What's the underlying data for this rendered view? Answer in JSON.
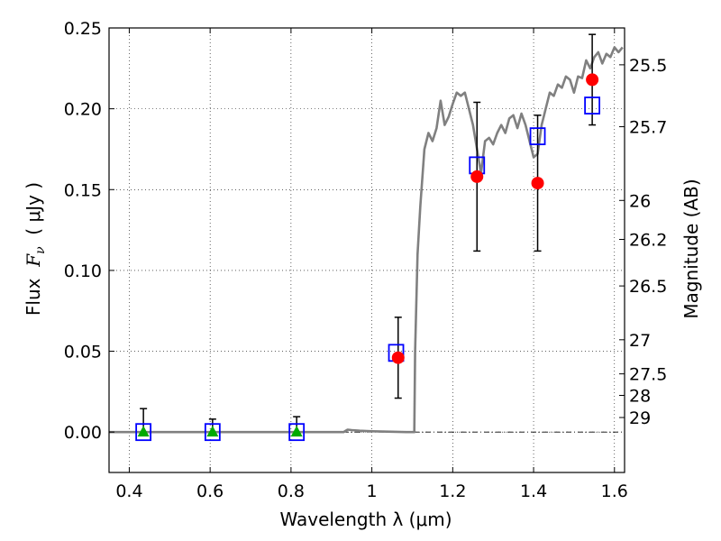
{
  "chart_data": {
    "type": "scatter",
    "xlabel": "Wavelength  λ (μm)",
    "ylabel": "Flux  Fν  ( μJy )",
    "ylabel_parts": {
      "prefix": "Flux  ",
      "symbol": "F",
      "subscript": "ν",
      "suffix": "  ( μJy )"
    },
    "ylabel_right": "Magnitude (AB)",
    "xlim": [
      0.35,
      1.625
    ],
    "ylim": [
      -0.025,
      0.25
    ],
    "grid": true,
    "x_ticks": [
      0.4,
      0.6,
      0.8,
      1.0,
      1.2,
      1.4,
      1.6
    ],
    "x_tick_labels": [
      "0.4",
      "0.6",
      "0.8",
      "1",
      "1.2",
      "1.4",
      "1.6"
    ],
    "y_ticks": [
      0.0,
      0.05,
      0.1,
      0.15,
      0.2,
      0.25
    ],
    "y_tick_labels": [
      "0.00",
      "0.05",
      "0.10",
      "0.15",
      "0.20",
      "0.25"
    ],
    "right_ticks": [
      {
        "label": "25.5",
        "flux": 0.2272
      },
      {
        "label": "25.7",
        "flux": 0.1889
      },
      {
        "label": "26",
        "flux": 0.1433
      },
      {
        "label": "26.2",
        "flux": 0.1192
      },
      {
        "label": "26.5",
        "flux": 0.0904
      },
      {
        "label": "27",
        "flux": 0.0571
      },
      {
        "label": "27.5",
        "flux": 0.036
      },
      {
        "label": "28",
        "flux": 0.0227
      },
      {
        "label": "29",
        "flux": 0.009
      }
    ],
    "series": [
      {
        "kind": "model-sed",
        "color": "#808080",
        "x": [
          0.35,
          0.5,
          0.7,
          0.93,
          0.94,
          0.95,
          0.97,
          1.0,
          1.05,
          1.085,
          1.105,
          1.107,
          1.113,
          1.12,
          1.13,
          1.14,
          1.15,
          1.16,
          1.17,
          1.18,
          1.19,
          1.2,
          1.21,
          1.22,
          1.23,
          1.24,
          1.25,
          1.26,
          1.27,
          1.28,
          1.29,
          1.3,
          1.31,
          1.32,
          1.33,
          1.34,
          1.35,
          1.36,
          1.37,
          1.38,
          1.39,
          1.4,
          1.41,
          1.42,
          1.43,
          1.44,
          1.45,
          1.46,
          1.47,
          1.48,
          1.49,
          1.5,
          1.51,
          1.52,
          1.53,
          1.54,
          1.55,
          1.56,
          1.57,
          1.58,
          1.59,
          1.6,
          1.61,
          1.62
        ],
        "y": [
          0.0,
          0.0,
          0.0,
          0.0,
          0.0015,
          0.0012,
          0.0008,
          0.0005,
          0.0002,
          0.0,
          0.0,
          0.05,
          0.11,
          0.14,
          0.175,
          0.185,
          0.18,
          0.188,
          0.205,
          0.19,
          0.195,
          0.203,
          0.21,
          0.208,
          0.21,
          0.2,
          0.19,
          0.175,
          0.16,
          0.18,
          0.182,
          0.178,
          0.185,
          0.19,
          0.185,
          0.194,
          0.196,
          0.188,
          0.197,
          0.19,
          0.18,
          0.17,
          0.172,
          0.19,
          0.2,
          0.21,
          0.208,
          0.215,
          0.213,
          0.22,
          0.218,
          0.21,
          0.22,
          0.219,
          0.23,
          0.225,
          0.232,
          0.235,
          0.228,
          0.234,
          0.232,
          0.238,
          0.235,
          0.238
        ]
      },
      {
        "kind": "model-photometry",
        "marker": "open-square",
        "color": "#0000ff",
        "x": [
          0.435,
          0.606,
          0.814,
          1.06,
          1.26,
          1.41,
          1.545
        ],
        "y": [
          0.0,
          0.0,
          0.0,
          0.049,
          0.165,
          0.183,
          0.202
        ]
      },
      {
        "kind": "observed-detection",
        "marker": "circle",
        "color": "#ff0000",
        "x": [
          1.065,
          1.26,
          1.41,
          1.545
        ],
        "y": [
          0.046,
          0.158,
          0.154,
          0.218
        ],
        "yerr": [
          0.025,
          0.046,
          0.042,
          0.028
        ]
      },
      {
        "kind": "observed-nondetection",
        "marker": "triangle",
        "color": "#00aa00",
        "x": [
          0.435,
          0.606,
          0.814
        ],
        "y": [
          0.0,
          0.0,
          0.0
        ],
        "yerr_upper": [
          0.0145,
          0.008,
          0.0095
        ],
        "yerr_lower": [
          0.0,
          0.0,
          0.0
        ]
      }
    ],
    "reference_line": {
      "y": 0.0,
      "style": "dash-dot",
      "color": "#000000"
    }
  }
}
